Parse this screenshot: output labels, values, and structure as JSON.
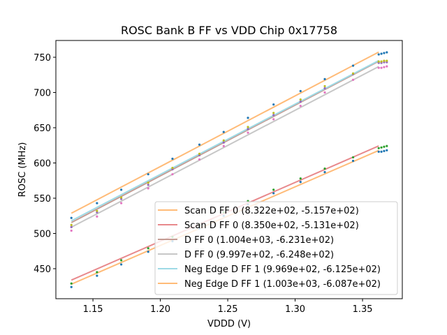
{
  "chart_data": {
    "type": "scatter",
    "title": "ROSC Bank B FF vs VDD Chip 0x17758",
    "xlabel": "VDDD (V)",
    "ylabel": "ROSC (MHz)",
    "xlim": [
      1.1225,
      1.3795
    ],
    "ylim": [
      407.4,
      773.8
    ],
    "xticks": [
      1.15,
      1.2,
      1.25,
      1.3,
      1.35
    ],
    "xtick_labels": [
      "1.15",
      "1.20",
      "1.25",
      "1.30",
      "1.35"
    ],
    "yticks": [
      450,
      500,
      550,
      600,
      650,
      700,
      750
    ],
    "ytick_labels": [
      "450",
      "500",
      "550",
      "600",
      "650",
      "700",
      "750"
    ],
    "grid": false,
    "legend_position": "bottom-right",
    "fit_x_range": [
      1.134,
      1.362
    ],
    "series": [
      {
        "name": "Scan D FF 0 (8.322e+02, -5.157e+02)",
        "slope": 832.2,
        "intercept": -515.7,
        "line_color": "#ffbb78",
        "points": [
          [
            1.134,
            424
          ],
          [
            1.153,
            440
          ],
          [
            1.171,
            456
          ],
          [
            1.191,
            474
          ],
          [
            1.209,
            489
          ],
          [
            1.229,
            507
          ],
          [
            1.247,
            525
          ],
          [
            1.265,
            541
          ],
          [
            1.284,
            557
          ],
          [
            1.304,
            573
          ],
          [
            1.322,
            587
          ],
          [
            1.343,
            603
          ],
          [
            1.362,
            616
          ],
          [
            1.364,
            616
          ],
          [
            1.366,
            617
          ],
          [
            1.368,
            618
          ]
        ],
        "point_color": "#1f77b4"
      },
      {
        "name": "Scan D FF 0 (8.350e+02, -5.131e+02)",
        "slope": 835.0,
        "intercept": -513.1,
        "line_color": "#e8898c",
        "points": [
          [
            1.134,
            429
          ],
          [
            1.153,
            445
          ],
          [
            1.171,
            462
          ],
          [
            1.191,
            479
          ],
          [
            1.209,
            495
          ],
          [
            1.229,
            512
          ],
          [
            1.247,
            530
          ],
          [
            1.265,
            546
          ],
          [
            1.284,
            562
          ],
          [
            1.304,
            578
          ],
          [
            1.322,
            592
          ],
          [
            1.343,
            608
          ],
          [
            1.362,
            621
          ],
          [
            1.364,
            622
          ],
          [
            1.366,
            623
          ],
          [
            1.368,
            624
          ]
        ],
        "point_color": "#2ca02c"
      },
      {
        "name": "D FF 0 (1.004e+03, -6.231e+02)",
        "slope": 1004,
        "intercept": -623.1,
        "line_color": "#c49c94",
        "points": [
          [
            1.134,
            509
          ],
          [
            1.153,
            530
          ],
          [
            1.171,
            549
          ],
          [
            1.191,
            569
          ],
          [
            1.209,
            591
          ],
          [
            1.229,
            611
          ],
          [
            1.247,
            629
          ],
          [
            1.265,
            648
          ],
          [
            1.284,
            668
          ],
          [
            1.304,
            687
          ],
          [
            1.322,
            706
          ],
          [
            1.343,
            726
          ],
          [
            1.362,
            742
          ],
          [
            1.364,
            742
          ],
          [
            1.366,
            743
          ],
          [
            1.368,
            743
          ]
        ],
        "point_color": "#9467bd"
      },
      {
        "name": "D FF 0 (9.997e+02, -6.248e+02)",
        "slope": 999.7,
        "intercept": -624.8,
        "line_color": "#c7c7c7",
        "points": [
          [
            1.134,
            504
          ],
          [
            1.153,
            524
          ],
          [
            1.171,
            543
          ],
          [
            1.191,
            564
          ],
          [
            1.209,
            584
          ],
          [
            1.229,
            605
          ],
          [
            1.247,
            624
          ],
          [
            1.265,
            643
          ],
          [
            1.284,
            662
          ],
          [
            1.304,
            681
          ],
          [
            1.322,
            700
          ],
          [
            1.343,
            718
          ],
          [
            1.362,
            735
          ],
          [
            1.364,
            735
          ],
          [
            1.366,
            736
          ],
          [
            1.368,
            737
          ]
        ],
        "point_color": "#e377c2"
      },
      {
        "name": "Neg Edge D FF 1 (9.969e+02, -6.125e+02)",
        "slope": 996.9,
        "intercept": -612.5,
        "line_color": "#9edae5",
        "points": [
          [
            1.134,
            512
          ],
          [
            1.153,
            532
          ],
          [
            1.171,
            551
          ],
          [
            1.191,
            572
          ],
          [
            1.209,
            593
          ],
          [
            1.229,
            613
          ],
          [
            1.247,
            632
          ],
          [
            1.265,
            651
          ],
          [
            1.284,
            671
          ],
          [
            1.304,
            690
          ],
          [
            1.322,
            709
          ],
          [
            1.343,
            727
          ],
          [
            1.362,
            744
          ],
          [
            1.364,
            744
          ],
          [
            1.366,
            745
          ],
          [
            1.368,
            745
          ]
        ],
        "point_color": "#bcbd22"
      },
      {
        "name": "Neg Edge D FF 1 (1.003e+03, -6.087e+02)",
        "slope": 1003,
        "intercept": -608.7,
        "line_color": "#ffbb78",
        "points": [
          [
            1.134,
            522
          ],
          [
            1.153,
            543
          ],
          [
            1.171,
            562
          ],
          [
            1.191,
            584
          ],
          [
            1.209,
            606
          ],
          [
            1.229,
            626
          ],
          [
            1.247,
            644
          ],
          [
            1.265,
            664
          ],
          [
            1.284,
            683
          ],
          [
            1.304,
            702
          ],
          [
            1.322,
            719
          ],
          [
            1.343,
            738
          ],
          [
            1.362,
            754
          ],
          [
            1.364,
            755
          ],
          [
            1.366,
            756
          ],
          [
            1.368,
            757
          ]
        ],
        "point_color": "#1f77b4"
      }
    ]
  }
}
